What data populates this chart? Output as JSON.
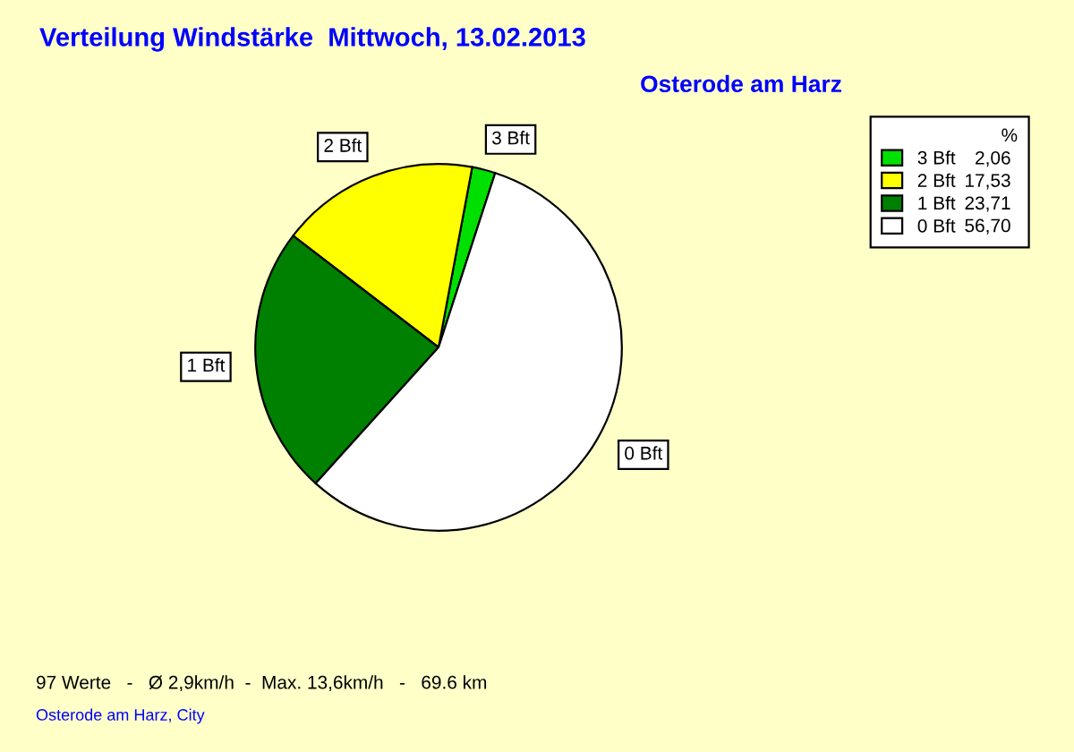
{
  "chart_data": {
    "type": "pie",
    "title": "Verteilung Windstärke  Mittwoch, 13.02.2013",
    "subtitle": "Osterode am Harz",
    "categories": [
      "3 Bft",
      "2 Bft",
      "1 Bft",
      "0 Bft"
    ],
    "values": [
      2.06,
      17.53,
      23.71,
      56.7
    ],
    "value_labels": [
      "2,06",
      "17,53",
      "23,71",
      "56,70"
    ],
    "colors": [
      "#00e000",
      "#ffff00",
      "#008000",
      "#ffffff"
    ],
    "legend": "top right",
    "legend_title": "%",
    "annotations": [
      "97 Werte   -   Ø 2,9km/h  -  Max. 13,6km/h   -   69.6 km",
      "Osterode am Harz, City"
    ]
  }
}
